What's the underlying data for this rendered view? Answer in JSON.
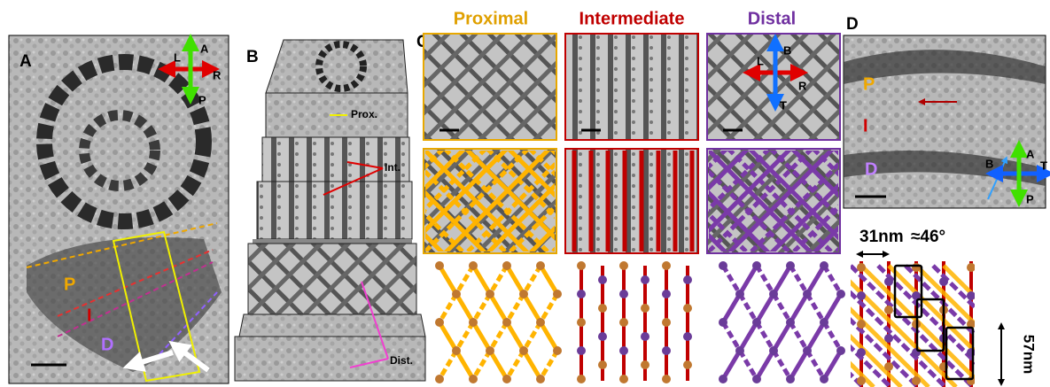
{
  "panels": {
    "a": {
      "label": "A",
      "axes": {
        "anterior": "A",
        "left": "L",
        "right": "R",
        "posterior": "P"
      },
      "regions": [
        "P",
        "I",
        "D"
      ]
    },
    "b": {
      "label": "B",
      "annotations": [
        "Prox.",
        "Int.",
        "Dist."
      ]
    },
    "c": {
      "label": "C",
      "columns": [
        "Proximal",
        "Intermediate",
        "Distal"
      ],
      "axes": {
        "base": "B",
        "left": "L",
        "right": "R",
        "tip": "T"
      }
    },
    "d": {
      "label": "D",
      "regions": [
        "P",
        "I",
        "D"
      ],
      "axes": {
        "anterior": "A",
        "base": "B",
        "tip": "T",
        "posterior": "P"
      },
      "measurements": {
        "spacing": "31nm",
        "angle": "≈46°",
        "period": "57nm"
      }
    }
  }
}
